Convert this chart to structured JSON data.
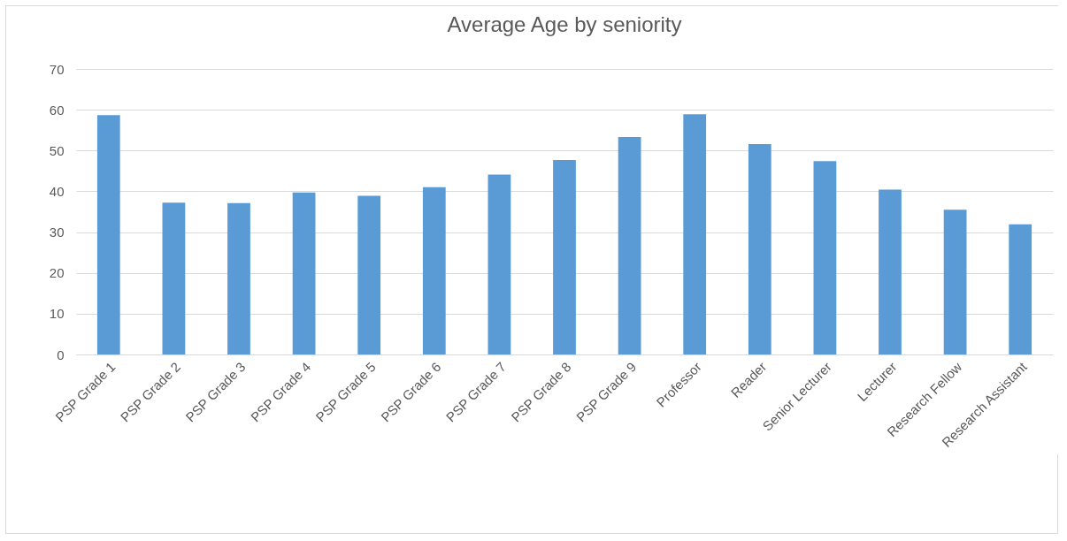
{
  "chart_data": {
    "type": "bar",
    "title": "Average Age by seniority",
    "categories": [
      "PSP Grade 1",
      "PSP Grade 2",
      "PSP Grade 3",
      "PSP Grade 4",
      "PSP Grade 5",
      "PSP Grade 6",
      "PSP Grade 7",
      "PSP Grade 8",
      "PSP Grade 9",
      "Professor",
      "Reader",
      "Senior Lecturer",
      "Lecturer",
      "Research Fellow",
      "Research Assistant"
    ],
    "values": [
      58.7,
      37.2,
      37.1,
      39.7,
      38.9,
      41.0,
      44.1,
      47.7,
      53.3,
      58.9,
      51.6,
      47.4,
      40.4,
      35.5,
      31.9
    ],
    "color": "#5b9bd5",
    "ylim": [
      0,
      70
    ],
    "yticks": [
      0,
      10,
      20,
      30,
      40,
      50,
      60,
      70
    ],
    "grid": "y"
  }
}
